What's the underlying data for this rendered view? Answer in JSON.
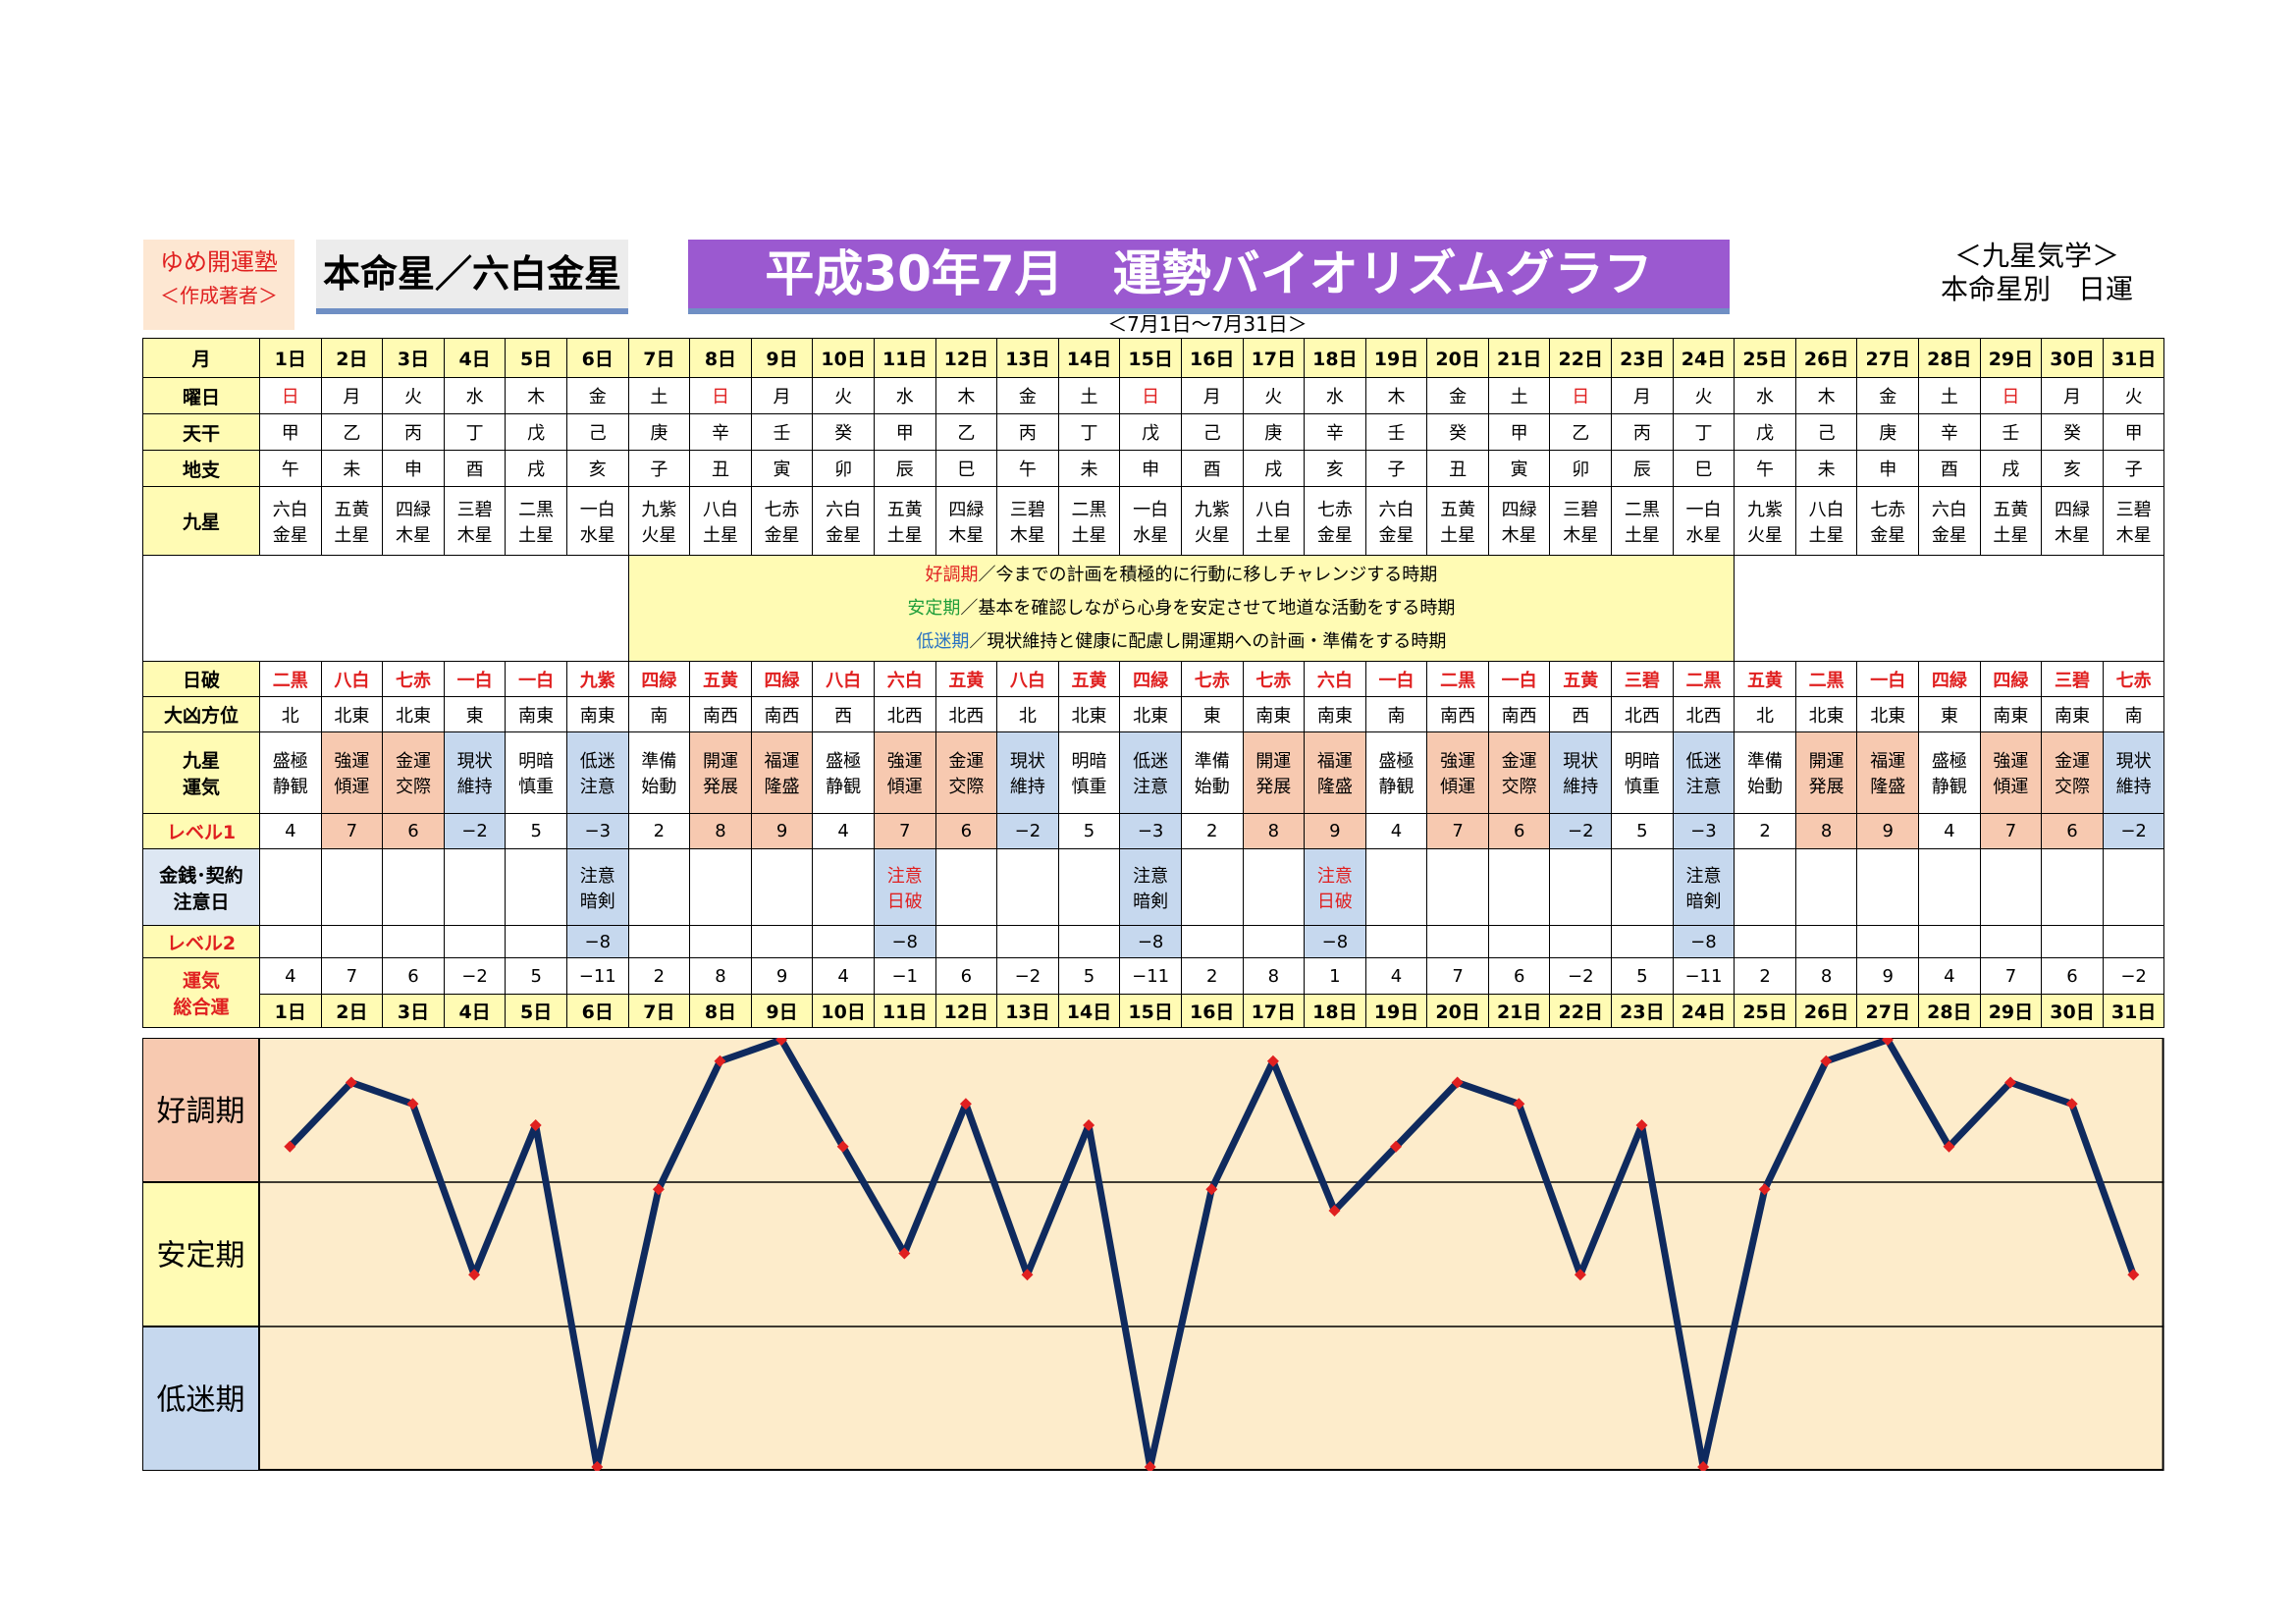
{
  "brand": {
    "line1": "ゆめ開運塾",
    "line2": "＜作成著者＞"
  },
  "honmei_label": "本命星／六白金星",
  "title": "平成30年7月　運勢バイオリズムグラフ",
  "subtitle": "＜7月1日～7月31日＞",
  "method": {
    "line1": "＜九星気学＞",
    "line2": "本命星別　日運"
  },
  "row_labels": {
    "month": "月",
    "weekday": "曜日",
    "tenkan": "天干",
    "chishi": "地支",
    "kyusei": "九星",
    "nippa": "日破",
    "daikyo": "大凶方位",
    "unki": "九星運気",
    "level1": "レベル1",
    "caution": "金銭･契約注意日",
    "level2": "レベル2",
    "total": "運気総合運"
  },
  "legend": [
    {
      "key": "好調期",
      "text": "／今までの計画を積極的に行動に移しチャレンジする時期",
      "kind": "good"
    },
    {
      "key": "安定期",
      "text": "／基本を確認しながら心身を安定させて地道な活動をする時期",
      "kind": "stable"
    },
    {
      "key": "低迷期",
      "text": "／現状維持と健康に配慮し開運期への計画・準備をする時期",
      "kind": "low"
    }
  ],
  "days": [
    "1日",
    "2日",
    "3日",
    "4日",
    "5日",
    "6日",
    "7日",
    "8日",
    "9日",
    "10日",
    "11日",
    "12日",
    "13日",
    "14日",
    "15日",
    "16日",
    "17日",
    "18日",
    "19日",
    "20日",
    "21日",
    "22日",
    "23日",
    "24日",
    "25日",
    "26日",
    "27日",
    "28日",
    "29日",
    "30日",
    "31日"
  ],
  "weekdays": [
    "日",
    "月",
    "火",
    "水",
    "木",
    "金",
    "土",
    "日",
    "月",
    "火",
    "水",
    "木",
    "金",
    "土",
    "日",
    "月",
    "火",
    "水",
    "木",
    "金",
    "土",
    "日",
    "月",
    "火",
    "水",
    "木",
    "金",
    "土",
    "日",
    "月",
    "火"
  ],
  "tenkan": [
    "甲",
    "乙",
    "丙",
    "丁",
    "戊",
    "己",
    "庚",
    "辛",
    "壬",
    "癸",
    "甲",
    "乙",
    "丙",
    "丁",
    "戊",
    "己",
    "庚",
    "辛",
    "壬",
    "癸",
    "甲",
    "乙",
    "丙",
    "丁",
    "戊",
    "己",
    "庚",
    "辛",
    "壬",
    "癸",
    "甲"
  ],
  "chishi": [
    "午",
    "未",
    "申",
    "酉",
    "戌",
    "亥",
    "子",
    "丑",
    "寅",
    "卯",
    "辰",
    "巳",
    "午",
    "未",
    "申",
    "酉",
    "戌",
    "亥",
    "子",
    "丑",
    "寅",
    "卯",
    "辰",
    "巳",
    "午",
    "未",
    "申",
    "酉",
    "戌",
    "亥",
    "子"
  ],
  "kyusei_top": [
    "六白",
    "五黄",
    "四緑",
    "三碧",
    "二黒",
    "一白",
    "九紫",
    "八白",
    "七赤",
    "六白",
    "五黄",
    "四緑",
    "三碧",
    "二黒",
    "一白",
    "九紫",
    "八白",
    "七赤",
    "六白",
    "五黄",
    "四緑",
    "三碧",
    "二黒",
    "一白",
    "九紫",
    "八白",
    "七赤",
    "六白",
    "五黄",
    "四緑",
    "三碧"
  ],
  "kyusei_bottom": [
    "金星",
    "土星",
    "木星",
    "木星",
    "土星",
    "水星",
    "火星",
    "土星",
    "金星",
    "金星",
    "土星",
    "木星",
    "木星",
    "土星",
    "水星",
    "火星",
    "土星",
    "金星",
    "金星",
    "土星",
    "木星",
    "木星",
    "土星",
    "水星",
    "火星",
    "土星",
    "金星",
    "金星",
    "土星",
    "木星",
    "木星"
  ],
  "nippa": [
    "二黒",
    "八白",
    "七赤",
    "一白",
    "一白",
    "九紫",
    "四緑",
    "五黄",
    "四緑",
    "八白",
    "六白",
    "五黄",
    "八白",
    "五黄",
    "四緑",
    "七赤",
    "七赤",
    "六白",
    "一白",
    "二黒",
    "一白",
    "五黄",
    "三碧",
    "二黒",
    "五黄",
    "二黒",
    "一白",
    "四緑",
    "四緑",
    "三碧",
    "七赤"
  ],
  "daikyo": [
    "北",
    "北東",
    "北東",
    "東",
    "南東",
    "南東",
    "南",
    "南西",
    "南西",
    "西",
    "北西",
    "北西",
    "北",
    "北東",
    "北東",
    "東",
    "南東",
    "南東",
    "南",
    "南西",
    "南西",
    "西",
    "北西",
    "北西",
    "北",
    "北東",
    "北東",
    "東",
    "南東",
    "南東",
    "南"
  ],
  "unki_top": [
    "盛極",
    "強運",
    "金運",
    "現状",
    "明暗",
    "低迷",
    "準備",
    "開運",
    "福運",
    "盛極",
    "強運",
    "金運",
    "現状",
    "明暗",
    "低迷",
    "準備",
    "開運",
    "福運",
    "盛極",
    "強運",
    "金運",
    "現状",
    "明暗",
    "低迷",
    "準備",
    "開運",
    "福運",
    "盛極",
    "強運",
    "金運",
    "現状"
  ],
  "unki_bottom": [
    "静観",
    "傾運",
    "交際",
    "維持",
    "慎重",
    "注意",
    "始動",
    "発展",
    "隆盛",
    "静観",
    "傾運",
    "交際",
    "維持",
    "慎重",
    "注意",
    "始動",
    "発展",
    "隆盛",
    "静観",
    "傾運",
    "交際",
    "維持",
    "慎重",
    "注意",
    "始動",
    "発展",
    "隆盛",
    "静観",
    "傾運",
    "交際",
    "維持"
  ],
  "level1": [
    "4",
    "7",
    "6",
    "−2",
    "5",
    "−3",
    "2",
    "8",
    "9",
    "4",
    "7",
    "6",
    "−2",
    "5",
    "−3",
    "2",
    "8",
    "9",
    "4",
    "7",
    "6",
    "−2",
    "5",
    "−3",
    "2",
    "8",
    "9",
    "4",
    "7",
    "6",
    "−2"
  ],
  "caution_top": [
    "",
    "",
    "",
    "",
    "",
    "注意",
    "",
    "",
    "",
    "",
    "注意",
    "",
    "",
    "",
    "注意",
    "",
    "",
    "注意",
    "",
    "",
    "",
    "",
    "",
    "注意",
    "",
    "",
    "",
    "",
    "",
    "",
    ""
  ],
  "caution_bottom": [
    "",
    "",
    "",
    "",
    "",
    "暗剣",
    "",
    "",
    "",
    "",
    "日破",
    "",
    "",
    "",
    "暗剣",
    "",
    "",
    "日破",
    "",
    "",
    "",
    "",
    "",
    "暗剣",
    "",
    "",
    "",
    "",
    "",
    "",
    ""
  ],
  "level2": [
    "",
    "",
    "",
    "",
    "",
    "−8",
    "",
    "",
    "",
    "",
    "−8",
    "",
    "",
    "",
    "−8",
    "",
    "",
    "−8",
    "",
    "",
    "",
    "",
    "",
    "−8",
    "",
    "",
    "",
    "",
    "",
    "",
    ""
  ],
  "total": [
    "4",
    "7",
    "6",
    "−2",
    "5",
    "−11",
    "2",
    "8",
    "9",
    "4",
    "−1",
    "6",
    "−2",
    "5",
    "−11",
    "2",
    "8",
    "1",
    "4",
    "7",
    "6",
    "−2",
    "5",
    "−11",
    "2",
    "8",
    "9",
    "4",
    "7",
    "6",
    "−2"
  ],
  "colors": {
    "good": "#f7c9b0",
    "stable": "#fffbb4",
    "low": "#c6d8ee",
    "header": "#fffbb4",
    "line": "#0f2a5e",
    "marker": "#e02020",
    "plot_bg": "#fdeccb",
    "title_bg": "#9b59d0"
  },
  "chart_data": {
    "type": "line",
    "title": "",
    "x": [
      "1日",
      "2日",
      "3日",
      "4日",
      "5日",
      "6日",
      "7日",
      "8日",
      "9日",
      "10日",
      "11日",
      "12日",
      "13日",
      "14日",
      "15日",
      "16日",
      "17日",
      "18日",
      "19日",
      "20日",
      "21日",
      "22日",
      "23日",
      "24日",
      "25日",
      "26日",
      "27日",
      "28日",
      "29日",
      "30日",
      "31日"
    ],
    "series": [
      {
        "name": "",
        "values": [
          4,
          7,
          6,
          -2,
          5,
          -11,
          2,
          8,
          9,
          4,
          -1,
          6,
          -2,
          5,
          -11,
          2,
          8,
          1,
          4,
          7,
          6,
          -2,
          5,
          -11,
          2,
          8,
          9,
          4,
          7,
          6,
          -2
        ]
      }
    ],
    "bands": [
      "好調期",
      "安定期",
      "低迷期"
    ],
    "ylim": [
      -11,
      9
    ],
    "grid": true,
    "legend": "none"
  }
}
